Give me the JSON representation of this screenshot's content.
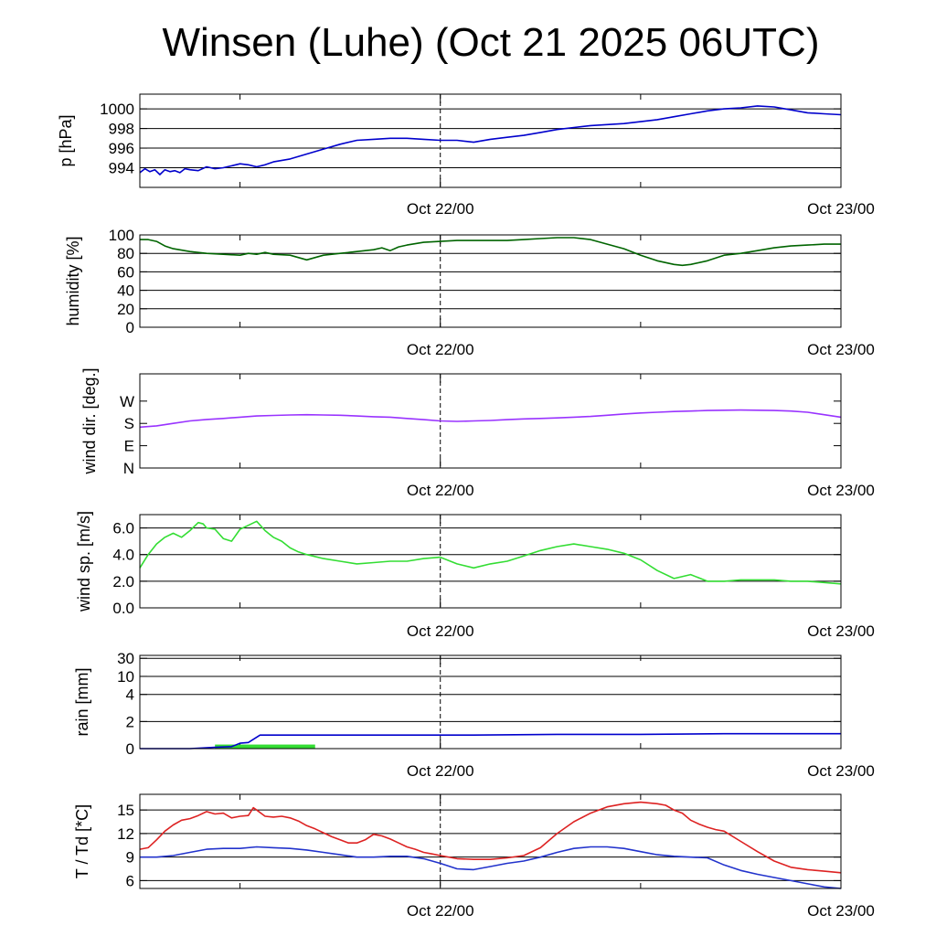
{
  "page": {
    "title": "Winsen (Luhe) (Oct 21 2025 06UTC)"
  },
  "chart_data": [
    {
      "type": "line",
      "ylabel": "p [hPa]",
      "ylim": [
        992,
        1001.5
      ],
      "yticks": [
        994,
        996,
        998,
        1000
      ],
      "ytick_labels": [
        "994",
        "996",
        "998",
        "1000"
      ],
      "xlim": [
        0,
        42
      ],
      "xtick_labels": [
        "Oct 22/00",
        "Oct 23/00"
      ],
      "grid": true,
      "series": [
        {
          "color": "#0000cc",
          "x": [
            0,
            0.3,
            0.6,
            0.9,
            1.2,
            1.5,
            1.8,
            2.1,
            2.4,
            2.7,
            3,
            3.5,
            4,
            4.5,
            5,
            5.5,
            6,
            6.5,
            7,
            7.5,
            8,
            9,
            10,
            11,
            12,
            13,
            14,
            15,
            16,
            17,
            18,
            19,
            20,
            21,
            22,
            23,
            24,
            25,
            26,
            27,
            28,
            29,
            30,
            31,
            32,
            33,
            34,
            35,
            36,
            37,
            38,
            39,
            40,
            41,
            42
          ],
          "y": [
            993.5,
            993.9,
            993.6,
            993.8,
            993.3,
            993.8,
            993.6,
            993.7,
            993.5,
            993.9,
            993.8,
            993.7,
            994.1,
            993.9,
            994.0,
            994.2,
            994.4,
            994.3,
            994.1,
            994.3,
            994.6,
            994.9,
            995.4,
            995.9,
            996.4,
            996.8,
            996.9,
            997.0,
            997.0,
            996.9,
            996.8,
            996.8,
            996.6,
            996.9,
            997.1,
            997.3,
            997.6,
            997.9,
            998.1,
            998.3,
            998.4,
            998.5,
            998.7,
            998.9,
            999.2,
            999.5,
            999.8,
            1000.0,
            1000.1,
            1000.3,
            1000.2,
            999.9,
            999.6,
            999.5,
            999.4
          ]
        }
      ]
    },
    {
      "type": "line",
      "ylabel": "humidity [%]",
      "ylim": [
        0,
        100
      ],
      "yticks": [
        0,
        20,
        40,
        60,
        80,
        100
      ],
      "ytick_labels": [
        "0",
        "20",
        "40",
        "60",
        "80",
        "100"
      ],
      "xlim": [
        0,
        42
      ],
      "xtick_labels": [
        "Oct 22/00",
        "Oct 23/00"
      ],
      "grid": true,
      "series": [
        {
          "color": "#006400",
          "x": [
            0,
            0.5,
            1,
            1.5,
            2,
            3,
            4,
            5,
            6,
            6.5,
            7,
            7.5,
            8,
            9,
            10,
            11,
            12,
            13,
            14,
            14.5,
            15,
            15.5,
            16,
            17,
            18,
            19,
            20,
            21,
            22,
            23,
            24,
            25,
            26,
            27,
            28,
            29,
            30,
            31,
            32,
            32.5,
            33,
            34,
            35,
            36,
            37,
            38,
            39,
            40,
            41,
            42
          ],
          "y": [
            95,
            95,
            93,
            88,
            85,
            82,
            80,
            79,
            78,
            80,
            79,
            81,
            79,
            78,
            73,
            78,
            80,
            82,
            84,
            86,
            83,
            87,
            89,
            92,
            93,
            94,
            94,
            94,
            94,
            95,
            96,
            97,
            97,
            95,
            90,
            85,
            78,
            72,
            68,
            67,
            68,
            72,
            78,
            80,
            83,
            86,
            88,
            89,
            90,
            90
          ]
        }
      ]
    },
    {
      "type": "line",
      "ylabel": "wind dir. [deg.]",
      "ylim": [
        0,
        380
      ],
      "yticks": [
        0,
        90,
        180,
        270
      ],
      "ytick_labels": [
        "N",
        "E",
        "S",
        "W"
      ],
      "xlim": [
        0,
        42
      ],
      "xtick_labels": [
        "Oct 22/00",
        "Oct 23/00"
      ],
      "grid": false,
      "series": [
        {
          "color": "#9933ff",
          "x": [
            0,
            1,
            2,
            3,
            4,
            5,
            6,
            7,
            8,
            9,
            10,
            11,
            12,
            13,
            14,
            15,
            16,
            17,
            18,
            19,
            20,
            21,
            22,
            23,
            24,
            25,
            26,
            27,
            28,
            29,
            30,
            31,
            32,
            33,
            34,
            35,
            36,
            37,
            38,
            39,
            40,
            41,
            42
          ],
          "y": [
            165,
            170,
            180,
            190,
            196,
            200,
            205,
            210,
            212,
            214,
            215,
            214,
            213,
            210,
            207,
            205,
            200,
            195,
            190,
            188,
            190,
            192,
            195,
            198,
            200,
            202,
            205,
            208,
            213,
            218,
            222,
            225,
            228,
            230,
            232,
            233,
            234,
            233,
            232,
            230,
            225,
            215,
            205
          ]
        }
      ]
    },
    {
      "type": "line",
      "ylabel": "wind sp. [m/s]",
      "ylim": [
        0,
        7
      ],
      "yticks": [
        0,
        2,
        4,
        6
      ],
      "ytick_labels": [
        "0.0",
        "2.0",
        "4.0",
        "6.0"
      ],
      "xlim": [
        0,
        42
      ],
      "xtick_labels": [
        "Oct 22/00",
        "Oct 23/00"
      ],
      "grid": true,
      "series": [
        {
          "color": "#33dd33",
          "x": [
            0,
            0.5,
            1,
            1.5,
            2,
            2.5,
            3,
            3.5,
            3.8,
            4,
            4.5,
            5,
            5.5,
            6,
            6.5,
            7,
            7.5,
            7.8,
            8,
            8.5,
            9,
            9.5,
            10,
            11,
            12,
            13,
            14,
            15,
            16,
            17,
            18,
            19,
            20,
            21,
            22,
            23,
            24,
            25,
            26,
            27,
            28,
            29,
            30,
            31,
            32,
            33,
            34,
            35,
            36,
            37,
            38,
            39,
            40,
            41,
            42
          ],
          "y": [
            3.0,
            4.0,
            4.8,
            5.3,
            5.6,
            5.3,
            5.8,
            6.4,
            6.3,
            6.0,
            5.9,
            5.2,
            5.0,
            5.9,
            6.2,
            6.5,
            5.8,
            5.5,
            5.3,
            5.0,
            4.5,
            4.2,
            4.0,
            3.7,
            3.5,
            3.3,
            3.4,
            3.5,
            3.5,
            3.7,
            3.8,
            3.3,
            3.0,
            3.3,
            3.5,
            3.9,
            4.3,
            4.6,
            4.8,
            4.6,
            4.4,
            4.1,
            3.6,
            2.8,
            2.2,
            2.5,
            2.0,
            2.0,
            2.1,
            2.1,
            2.1,
            2.0,
            2.0,
            1.9,
            1.8
          ]
        }
      ]
    },
    {
      "type": "line",
      "ylabel": "rain [mm]",
      "ylim": [
        0,
        32
      ],
      "yticks": [
        0,
        2,
        4,
        10,
        30
      ],
      "ytick_labels": [
        "0",
        "2",
        "4",
        "10",
        "30"
      ],
      "xlim": [
        0,
        42
      ],
      "xtick_labels": [
        "Oct 22/00",
        "Oct 23/00"
      ],
      "grid": true,
      "series": [
        {
          "color": "#0000cc",
          "x": [
            0,
            3,
            4.5,
            5.5,
            6,
            6.5,
            7.2,
            10,
            15,
            20,
            25,
            30,
            35,
            40,
            42
          ],
          "y": [
            0,
            0,
            0.1,
            0.15,
            0.4,
            0.45,
            1.0,
            1.0,
            1.0,
            1.0,
            1.05,
            1.05,
            1.1,
            1.1,
            1.1
          ]
        }
      ],
      "bars": {
        "color": "#33dd33",
        "x_start": 4.5,
        "x_end": 10.5,
        "value": 0.3
      }
    },
    {
      "type": "line",
      "ylabel": "T / Td [*C]",
      "ylim": [
        5,
        17
      ],
      "yticks": [
        6,
        9,
        12,
        15
      ],
      "ytick_labels": [
        "6",
        "9",
        "12",
        "15"
      ],
      "xlim": [
        0,
        42
      ],
      "xtick_labels": [
        "Oct 22/00",
        "Oct 23/00"
      ],
      "grid": true,
      "series": [
        {
          "color": "#dd2222",
          "x": [
            0,
            0.5,
            1,
            1.5,
            2,
            2.5,
            3,
            3.5,
            4,
            4.5,
            5,
            5.5,
            6,
            6.5,
            6.8,
            7,
            7.5,
            8,
            8.5,
            9,
            9.5,
            10,
            10.5,
            11,
            11.5,
            12,
            12.5,
            13,
            13.5,
            14,
            14.5,
            15,
            15.5,
            16,
            16.5,
            17,
            17.5,
            18,
            19,
            20,
            21,
            22,
            23,
            24,
            25,
            26,
            27,
            28,
            29,
            30,
            31,
            31.5,
            32,
            32.5,
            33,
            33.5,
            34,
            34.5,
            35,
            36,
            37,
            38,
            39,
            40,
            41,
            42
          ],
          "y": [
            10.0,
            10.2,
            11.2,
            12.3,
            13.1,
            13.7,
            13.9,
            14.3,
            14.8,
            14.5,
            14.6,
            14.0,
            14.2,
            14.3,
            15.3,
            15.0,
            14.2,
            14.1,
            14.2,
            14.0,
            13.6,
            13.0,
            12.6,
            12.1,
            11.6,
            11.2,
            10.8,
            10.8,
            11.2,
            11.9,
            11.7,
            11.3,
            10.8,
            10.3,
            10.0,
            9.6,
            9.4,
            9.2,
            8.8,
            8.7,
            8.7,
            8.9,
            9.2,
            10.2,
            12.0,
            13.5,
            14.6,
            15.4,
            15.8,
            16.0,
            15.8,
            15.6,
            15.0,
            14.6,
            13.7,
            13.2,
            12.8,
            12.5,
            12.3,
            11.0,
            9.7,
            8.5,
            7.7,
            7.4,
            7.2,
            7.0
          ]
        },
        {
          "color": "#2233cc",
          "x": [
            0,
            1,
            2,
            3,
            4,
            5,
            6,
            7,
            8,
            9,
            10,
            11,
            12,
            13,
            14,
            15,
            16,
            17,
            18,
            19,
            20,
            21,
            22,
            23,
            24,
            25,
            26,
            27,
            28,
            29,
            30,
            31,
            32,
            33,
            34,
            35,
            36,
            37,
            38,
            39,
            40,
            41,
            42
          ],
          "y": [
            9.0,
            9.0,
            9.2,
            9.6,
            10.0,
            10.1,
            10.1,
            10.3,
            10.2,
            10.1,
            9.9,
            9.6,
            9.3,
            9.0,
            9.0,
            9.1,
            9.1,
            8.8,
            8.2,
            7.5,
            7.4,
            7.8,
            8.2,
            8.5,
            9.0,
            9.6,
            10.1,
            10.3,
            10.3,
            10.1,
            9.7,
            9.3,
            9.1,
            9.0,
            8.9,
            8.0,
            7.3,
            6.8,
            6.4,
            6.0,
            5.6,
            5.2,
            5.0
          ]
        }
      ]
    }
  ]
}
